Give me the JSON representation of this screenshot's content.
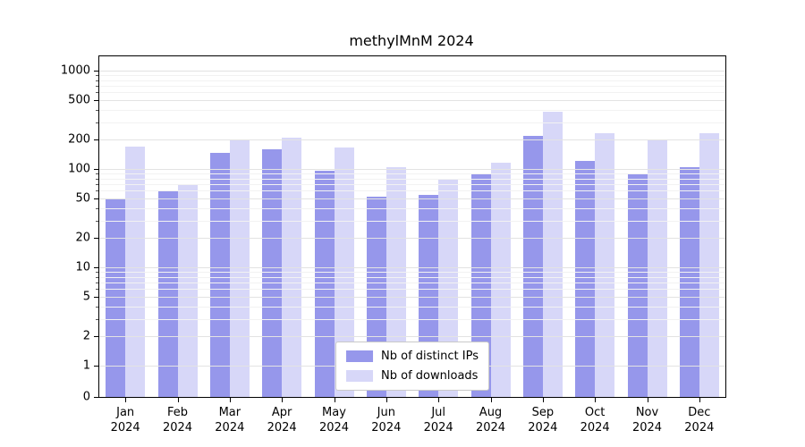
{
  "chart_data": {
    "type": "bar",
    "title": "methylMnM 2024",
    "categories": [
      "Jan",
      "Feb",
      "Mar",
      "Apr",
      "May",
      "Jun",
      "Jul",
      "Aug",
      "Sep",
      "Oct",
      "Nov",
      "Dec"
    ],
    "category_year": "2024",
    "series": [
      {
        "name": "Nb of distinct IPs",
        "color": "#9697eb",
        "values": [
          50,
          60,
          145,
          160,
          95,
          52,
          54,
          90,
          215,
          120,
          90,
          105
        ]
      },
      {
        "name": "Nb of downloads",
        "color": "#d7d7f8",
        "values": [
          170,
          68,
          195,
          210,
          165,
          105,
          78,
          115,
          380,
          230,
          200,
          230
        ]
      }
    ],
    "yscale": "symlog",
    "yticks": [
      0,
      1,
      2,
      5,
      10,
      20,
      50,
      100,
      200,
      500,
      1000
    ],
    "minor_yticks": [
      3,
      4,
      6,
      7,
      8,
      9,
      30,
      40,
      60,
      70,
      80,
      90,
      300,
      400,
      600,
      700,
      800,
      900
    ],
    "ylim": [
      0,
      1400
    ],
    "grid": true,
    "legend_position": "lower center"
  }
}
